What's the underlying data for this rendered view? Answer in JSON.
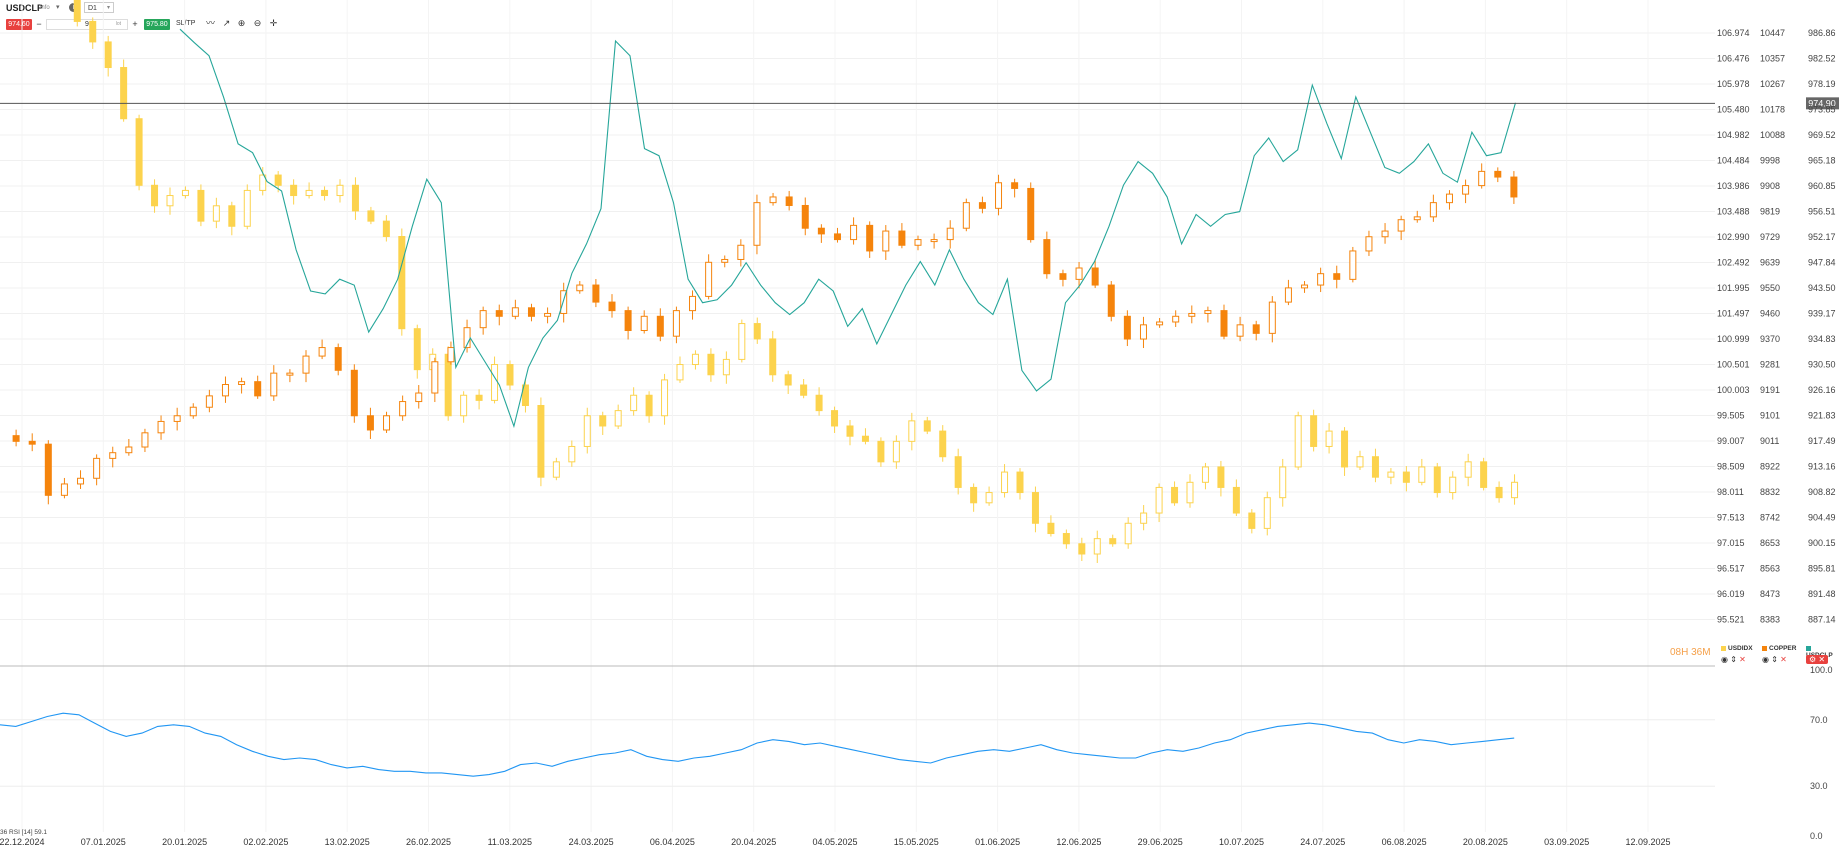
{
  "toolbar": {
    "symbol": "USDCLP",
    "symbol_sub": "info",
    "timeframe": "D1",
    "sell_price": "974.60",
    "quantity": "9",
    "quantity_unit": "lot",
    "buy_price": "975.80",
    "sltp_label": "SL/TP",
    "icons": [
      "line-icon",
      "trend-icon",
      "zoom-in-icon",
      "zoom-out-icon",
      "crosshair-icon"
    ]
  },
  "legend": {
    "timer": "08H 36M",
    "items": [
      {
        "name": "USDIDX",
        "color": "#fcd34d"
      },
      {
        "name": "COPPER",
        "color": "#f5840c"
      },
      {
        "name": "USDCLP",
        "color": "#26a69a"
      }
    ]
  },
  "current_price_label": "974.90",
  "rsi_label": "36 RSI [14] 59.1",
  "chart_data": {
    "type": "line",
    "x_labels": [
      "22.12.2024",
      "07.01.2025",
      "20.01.2025",
      "02.02.2025",
      "13.02.2025",
      "26.02.2025",
      "11.03.2025",
      "24.03.2025",
      "06.04.2025",
      "20.04.2025",
      "04.05.2025",
      "15.05.2025",
      "01.06.2025",
      "12.06.2025",
      "29.06.2025",
      "10.07.2025",
      "24.07.2025",
      "06.08.2025",
      "20.08.2025",
      "03.09.2025",
      "12.09.2025"
    ],
    "axis1_ticks": [
      "106.974",
      "106.476",
      "105.978",
      "105.480",
      "104.982",
      "104.484",
      "103.986",
      "103.488",
      "102.990",
      "102.492",
      "101.995",
      "101.497",
      "100.999",
      "100.501",
      "100.003",
      "99.505",
      "99.007",
      "98.509",
      "98.011",
      "97.513",
      "97.015",
      "96.517",
      "96.019",
      "95.521"
    ],
    "axis2_ticks": [
      "10447",
      "10357",
      "10267",
      "10178",
      "10088",
      "9998",
      "9908",
      "9819",
      "9729",
      "9639",
      "9550",
      "9460",
      "9370",
      "9281",
      "9191",
      "9101",
      "9011",
      "8922",
      "8832",
      "8742",
      "8653",
      "8563",
      "8473",
      "8383"
    ],
    "axis3_ticks": [
      "986.86",
      "982.52",
      "978.19",
      "973.85",
      "969.52",
      "965.18",
      "960.85",
      "956.51",
      "952.17",
      "947.84",
      "943.50",
      "939.17",
      "934.83",
      "930.50",
      "926.16",
      "921.83",
      "917.49",
      "913.16",
      "908.82",
      "904.49",
      "900.15",
      "895.81",
      "891.48",
      "887.14"
    ],
    "rsi_ticks": [
      "100.0",
      "70.0",
      "30.0",
      "0.0"
    ],
    "current_price": 974.9,
    "series": [
      {
        "name": "USDIDX",
        "type": "candlestick",
        "color": "#fcd34d",
        "close": [
          108.9,
          108.7,
          108.4,
          108.0,
          107.8,
          107.2,
          106.8,
          106.3,
          105.3,
          104.0,
          103.6,
          103.8,
          103.9,
          103.3,
          103.6,
          103.2,
          103.9,
          104.2,
          104.0,
          103.8,
          103.9,
          103.8,
          104.0,
          103.5,
          103.3,
          103.0,
          101.2,
          100.4,
          100.7,
          99.5,
          99.9,
          99.8,
          100.5,
          100.1,
          99.7,
          98.3,
          98.6,
          98.9,
          99.5,
          99.3,
          99.6,
          99.9,
          99.5,
          100.2,
          100.5,
          100.7,
          100.3,
          100.6,
          101.3,
          101.0,
          100.3,
          100.1,
          99.9,
          99.6,
          99.3,
          99.1,
          99.0,
          98.6,
          99.0,
          99.4,
          99.2,
          98.7,
          98.1,
          97.8,
          98.0,
          98.4,
          98.0,
          97.4,
          97.2,
          97.0,
          96.8,
          97.1,
          97.0,
          97.4,
          97.6,
          98.1,
          97.8,
          98.2,
          98.5,
          98.1,
          97.6,
          97.3,
          97.9,
          98.5,
          99.5,
          98.9,
          99.2,
          98.5,
          98.7,
          98.3,
          98.4,
          98.2,
          98.5,
          98.0,
          98.3,
          98.6,
          98.1,
          97.9,
          98.2
        ]
      },
      {
        "name": "COPPER",
        "type": "candlestick",
        "color": "#f5840c",
        "close": [
          9030,
          9010,
          9000,
          8820,
          8860,
          8880,
          8950,
          8970,
          8990,
          9040,
          9080,
          9100,
          9130,
          9170,
          9210,
          9220,
          9170,
          9250,
          9250,
          9310,
          9340,
          9260,
          9100,
          9050,
          9100,
          9150,
          9180,
          9290,
          9340,
          9410,
          9470,
          9450,
          9480,
          9450,
          9460,
          9540,
          9560,
          9500,
          9470,
          9400,
          9450,
          9380,
          9470,
          9520,
          9640,
          9650,
          9700,
          9850,
          9870,
          9840,
          9760,
          9740,
          9720,
          9770,
          9680,
          9750,
          9700,
          9720,
          9720,
          9760,
          9850,
          9830,
          9920,
          9900,
          9720,
          9600,
          9580,
          9620,
          9560,
          9450,
          9370,
          9420,
          9430,
          9450,
          9460,
          9470,
          9380,
          9420,
          9390,
          9500,
          9550,
          9560,
          9600,
          9580,
          9680,
          9730,
          9750,
          9790,
          9800,
          9850,
          9880,
          9910,
          9960,
          9940,
          9870
        ]
      },
      {
        "name": "USDCLP",
        "type": "line",
        "color": "#26a69a",
        "close": [
          987.5,
          985.2,
          983.0,
          976.0,
          968.0,
          966.5,
          961.6,
          960.0,
          950.0,
          943.0,
          942.5,
          945.0,
          944.0,
          936.0,
          940.0,
          945.0,
          954.0,
          962.0,
          958.0,
          930.0,
          935.0,
          931.0,
          927.0,
          920.0,
          930.0,
          935.0,
          938.0,
          946.0,
          951.0,
          957.0,
          985.5,
          983.0,
          967.2,
          966.0,
          958.0,
          945.0,
          941.0,
          941.5,
          944.0,
          947.8,
          944.0,
          941.0,
          939.0,
          941.0,
          945.0,
          943.0,
          937.0,
          940.0,
          934.0,
          939.0,
          944.0,
          948.0,
          944.0,
          950.0,
          945.0,
          941.0,
          939.0,
          945.0,
          929.5,
          926.0,
          928.0,
          941.0,
          944.0,
          948.0,
          954.0,
          961.0,
          965.0,
          963.0,
          959.0,
          951.0,
          956.0,
          954.0,
          956.0,
          956.5,
          966.0,
          969.0,
          965.0,
          967.0,
          978.0,
          971.5,
          965.5,
          976.0,
          970.0,
          964.0,
          963.0,
          965.0,
          968.0,
          963.0,
          961.5,
          970.0,
          966.0,
          966.5,
          975.0
        ]
      },
      {
        "name": "RSI",
        "type": "line",
        "color": "#2196f3",
        "values": [
          67,
          66,
          69,
          72,
          74,
          73,
          68,
          63,
          60,
          62,
          66,
          67,
          66,
          62,
          60,
          55,
          51,
          48,
          46,
          47,
          46,
          43,
          41,
          42,
          40,
          39,
          39,
          38,
          38,
          37,
          36,
          37,
          39,
          43,
          44,
          42,
          45,
          47,
          49,
          50,
          52,
          48,
          46,
          45,
          47,
          48,
          50,
          52,
          56,
          58,
          57,
          55,
          56,
          54,
          52,
          50,
          48,
          46,
          45,
          44,
          47,
          49,
          51,
          52,
          51,
          53,
          55,
          52,
          50,
          49,
          48,
          47,
          47,
          50,
          52,
          51,
          53,
          56,
          58,
          62,
          64,
          66,
          67,
          68,
          67,
          65,
          63,
          62,
          58,
          56,
          58,
          57,
          55,
          56,
          57,
          58,
          59
        ]
      }
    ]
  }
}
